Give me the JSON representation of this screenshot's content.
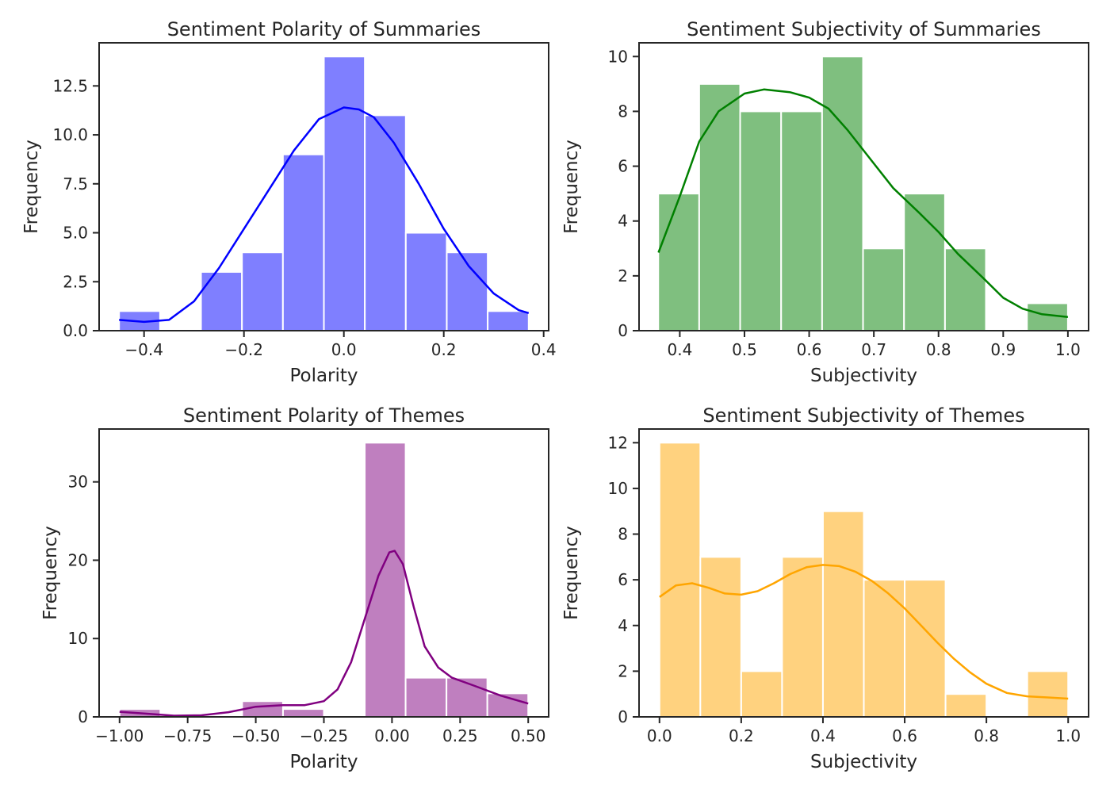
{
  "chart_data": [
    {
      "type": "bar",
      "title": "Sentiment Polarity of Summaries",
      "xlabel": "Polarity",
      "ylabel": "Frequency",
      "xlim": [
        -0.49,
        0.41
      ],
      "ylim": [
        0,
        14.7
      ],
      "xticks": [
        -0.4,
        -0.2,
        0.0,
        0.2,
        0.4
      ],
      "xtick_labels": [
        "−0.4",
        "−0.2",
        "0.0",
        "0.2",
        "0.4"
      ],
      "yticks": [
        0,
        2.5,
        5,
        7.5,
        10,
        12.5
      ],
      "ytick_labels": [
        "0.0",
        "2.5",
        "5.0",
        "7.5",
        "10.0",
        "12.5"
      ],
      "color": "#0000ff",
      "bars": [
        {
          "x0": -0.45,
          "x1": -0.368,
          "value": 1
        },
        {
          "x0": -0.368,
          "x1": -0.286,
          "value": 0
        },
        {
          "x0": -0.286,
          "x1": -0.204,
          "value": 3
        },
        {
          "x0": -0.204,
          "x1": -0.122,
          "value": 4
        },
        {
          "x0": -0.122,
          "x1": -0.04,
          "value": 9
        },
        {
          "x0": -0.04,
          "x1": 0.042,
          "value": 14
        },
        {
          "x0": 0.042,
          "x1": 0.124,
          "value": 11
        },
        {
          "x0": 0.124,
          "x1": 0.206,
          "value": 5
        },
        {
          "x0": 0.206,
          "x1": 0.288,
          "value": 4
        },
        {
          "x0": 0.288,
          "x1": 0.37,
          "value": 1
        }
      ],
      "kde": [
        [
          -0.45,
          0.55
        ],
        [
          -0.4,
          0.45
        ],
        [
          -0.35,
          0.55
        ],
        [
          -0.3,
          1.5
        ],
        [
          -0.25,
          3.2
        ],
        [
          -0.2,
          5.2
        ],
        [
          -0.15,
          7.2
        ],
        [
          -0.1,
          9.2
        ],
        [
          -0.05,
          10.8
        ],
        [
          0.0,
          11.4
        ],
        [
          0.03,
          11.3
        ],
        [
          0.06,
          10.9
        ],
        [
          0.1,
          9.6
        ],
        [
          0.15,
          7.5
        ],
        [
          0.2,
          5.2
        ],
        [
          0.25,
          3.3
        ],
        [
          0.3,
          1.9
        ],
        [
          0.35,
          1.05
        ],
        [
          0.37,
          0.9
        ]
      ]
    },
    {
      "type": "bar",
      "title": "Sentiment Subjectivity of Summaries",
      "xlabel": "Subjectivity",
      "ylabel": "Frequency",
      "xlim": [
        0.337,
        1.032
      ],
      "ylim": [
        0,
        10.5
      ],
      "xticks": [
        0.4,
        0.5,
        0.6,
        0.7,
        0.8,
        0.9,
        1.0
      ],
      "xtick_labels": [
        "0.4",
        "0.5",
        "0.6",
        "0.7",
        "0.8",
        "0.9",
        "1.0"
      ],
      "yticks": [
        0,
        2,
        4,
        6,
        8,
        10
      ],
      "ytick_labels": [
        "0",
        "2",
        "4",
        "6",
        "8",
        "10"
      ],
      "color": "#008000",
      "bars": [
        {
          "x0": 0.3667,
          "x1": 0.43,
          "value": 5
        },
        {
          "x0": 0.43,
          "x1": 0.4933,
          "value": 9
        },
        {
          "x0": 0.4933,
          "x1": 0.5567,
          "value": 8
        },
        {
          "x0": 0.5567,
          "x1": 0.62,
          "value": 8
        },
        {
          "x0": 0.62,
          "x1": 0.6833,
          "value": 10
        },
        {
          "x0": 0.6833,
          "x1": 0.7467,
          "value": 3
        },
        {
          "x0": 0.7467,
          "x1": 0.81,
          "value": 5
        },
        {
          "x0": 0.81,
          "x1": 0.8733,
          "value": 3
        },
        {
          "x0": 0.8733,
          "x1": 0.9367,
          "value": 0
        },
        {
          "x0": 0.9367,
          "x1": 1.0,
          "value": 1
        }
      ],
      "kde": [
        [
          0.367,
          2.85
        ],
        [
          0.4,
          4.9
        ],
        [
          0.43,
          6.9
        ],
        [
          0.46,
          8.0
        ],
        [
          0.5,
          8.65
        ],
        [
          0.53,
          8.8
        ],
        [
          0.57,
          8.7
        ],
        [
          0.6,
          8.5
        ],
        [
          0.63,
          8.1
        ],
        [
          0.66,
          7.3
        ],
        [
          0.7,
          6.1
        ],
        [
          0.73,
          5.2
        ],
        [
          0.77,
          4.3
        ],
        [
          0.8,
          3.6
        ],
        [
          0.83,
          2.8
        ],
        [
          0.87,
          1.9
        ],
        [
          0.9,
          1.2
        ],
        [
          0.93,
          0.8
        ],
        [
          0.96,
          0.6
        ],
        [
          1.0,
          0.5
        ]
      ]
    },
    {
      "type": "bar",
      "title": "Sentiment Polarity of Themes",
      "xlabel": "Polarity",
      "ylabel": "Frequency",
      "xlim": [
        -1.075,
        0.575
      ],
      "ylim": [
        0,
        36.75
      ],
      "xticks": [
        -1.0,
        -0.75,
        -0.5,
        -0.25,
        0.0,
        0.25,
        0.5
      ],
      "xtick_labels": [
        "−1.00",
        "−0.75",
        "−0.50",
        "−0.25",
        "0.00",
        "0.25",
        "0.50"
      ],
      "yticks": [
        0,
        10,
        20,
        30
      ],
      "ytick_labels": [
        "0",
        "10",
        "20",
        "30"
      ],
      "color": "#800080",
      "bars": [
        {
          "x0": -1.0,
          "x1": -0.85,
          "value": 1
        },
        {
          "x0": -0.85,
          "x1": -0.7,
          "value": 0
        },
        {
          "x0": -0.7,
          "x1": -0.55,
          "value": 0
        },
        {
          "x0": -0.55,
          "x1": -0.4,
          "value": 2
        },
        {
          "x0": -0.4,
          "x1": -0.25,
          "value": 1
        },
        {
          "x0": -0.25,
          "x1": -0.1,
          "value": 0
        },
        {
          "x0": -0.1,
          "x1": 0.05,
          "value": 35
        },
        {
          "x0": 0.05,
          "x1": 0.2,
          "value": 5
        },
        {
          "x0": 0.2,
          "x1": 0.35,
          "value": 5
        },
        {
          "x0": 0.35,
          "x1": 0.5,
          "value": 3
        }
      ],
      "kde": [
        [
          -1.0,
          0.65
        ],
        [
          -0.9,
          0.4
        ],
        [
          -0.8,
          0.15
        ],
        [
          -0.7,
          0.2
        ],
        [
          -0.6,
          0.6
        ],
        [
          -0.5,
          1.3
        ],
        [
          -0.4,
          1.5
        ],
        [
          -0.32,
          1.5
        ],
        [
          -0.25,
          2.0
        ],
        [
          -0.2,
          3.5
        ],
        [
          -0.15,
          7.0
        ],
        [
          -0.1,
          12.5
        ],
        [
          -0.05,
          18.0
        ],
        [
          -0.01,
          21.0
        ],
        [
          0.01,
          21.2
        ],
        [
          0.04,
          19.5
        ],
        [
          0.08,
          14.0
        ],
        [
          0.12,
          9.0
        ],
        [
          0.17,
          6.3
        ],
        [
          0.22,
          5.0
        ],
        [
          0.3,
          4.0
        ],
        [
          0.4,
          2.7
        ],
        [
          0.5,
          1.7
        ]
      ]
    },
    {
      "type": "bar",
      "title": "Sentiment Subjectivity of Themes",
      "xlabel": "Subjectivity",
      "ylabel": "Frequency",
      "xlim": [
        -0.05,
        1.05
      ],
      "ylim": [
        0,
        12.6
      ],
      "xticks": [
        0.0,
        0.2,
        0.4,
        0.6,
        0.8,
        1.0
      ],
      "xtick_labels": [
        "0.0",
        "0.2",
        "0.4",
        "0.6",
        "0.8",
        "1.0"
      ],
      "yticks": [
        0,
        2,
        4,
        6,
        8,
        10,
        12
      ],
      "ytick_labels": [
        "0",
        "2",
        "4",
        "6",
        "8",
        "10",
        "12"
      ],
      "color": "#ffa500",
      "bars": [
        {
          "x0": 0.0,
          "x1": 0.1,
          "value": 12
        },
        {
          "x0": 0.1,
          "x1": 0.2,
          "value": 7
        },
        {
          "x0": 0.2,
          "x1": 0.3,
          "value": 2
        },
        {
          "x0": 0.3,
          "x1": 0.4,
          "value": 7
        },
        {
          "x0": 0.4,
          "x1": 0.5,
          "value": 9
        },
        {
          "x0": 0.5,
          "x1": 0.6,
          "value": 6
        },
        {
          "x0": 0.6,
          "x1": 0.7,
          "value": 6
        },
        {
          "x0": 0.7,
          "x1": 0.8,
          "value": 1
        },
        {
          "x0": 0.8,
          "x1": 0.9,
          "value": 0
        },
        {
          "x0": 0.9,
          "x1": 1.0,
          "value": 2
        }
      ],
      "kde": [
        [
          0.0,
          5.25
        ],
        [
          0.04,
          5.75
        ],
        [
          0.08,
          5.85
        ],
        [
          0.12,
          5.65
        ],
        [
          0.16,
          5.4
        ],
        [
          0.2,
          5.35
        ],
        [
          0.24,
          5.5
        ],
        [
          0.28,
          5.85
        ],
        [
          0.32,
          6.25
        ],
        [
          0.36,
          6.55
        ],
        [
          0.4,
          6.65
        ],
        [
          0.44,
          6.6
        ],
        [
          0.48,
          6.35
        ],
        [
          0.52,
          5.95
        ],
        [
          0.56,
          5.4
        ],
        [
          0.6,
          4.75
        ],
        [
          0.64,
          4.0
        ],
        [
          0.68,
          3.25
        ],
        [
          0.72,
          2.55
        ],
        [
          0.76,
          1.95
        ],
        [
          0.8,
          1.45
        ],
        [
          0.85,
          1.05
        ],
        [
          0.9,
          0.9
        ],
        [
          0.95,
          0.85
        ],
        [
          1.0,
          0.8
        ]
      ]
    }
  ]
}
